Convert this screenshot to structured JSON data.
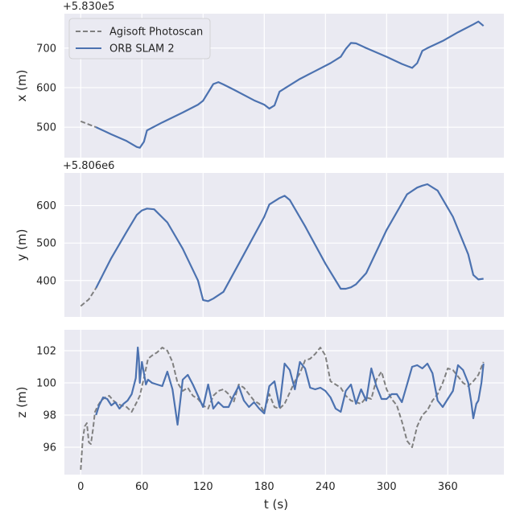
{
  "colors": {
    "axes_bg": "#eaeaf2",
    "grid": "#ffffff",
    "text": "#262626",
    "agisoft": "#808080",
    "orb": "#4c72b0"
  },
  "legend": {
    "placement": "upper-left of top panel",
    "entries": [
      {
        "label": "Agisoft Photoscan",
        "style": "dashed",
        "color": "#808080"
      },
      {
        "label": "ORB SLAM 2",
        "style": "solid",
        "color": "#4c72b0"
      }
    ]
  },
  "chart_data": [
    {
      "type": "line",
      "title": "",
      "xlabel": "",
      "ylabel": "x (m)",
      "offset_text": "+5.830e5",
      "xlim": [
        -16,
        415
      ],
      "ylim": [
        423,
        787
      ],
      "x_ticks": [
        0,
        60,
        120,
        180,
        240,
        300,
        360
      ],
      "y_ticks": [
        500,
        600,
        700
      ],
      "y_tick_labels": [
        "500",
        "600",
        "700"
      ],
      "grid": true,
      "series": [
        {
          "name": "Agisoft Photoscan",
          "style": "dashed",
          "x": [
            0,
            10,
            15
          ],
          "y": [
            515,
            505,
            500
          ]
        },
        {
          "name": "ORB SLAM 2",
          "style": "solid",
          "x": [
            15,
            30,
            45,
            55,
            58,
            62,
            65,
            80,
            100,
            115,
            120,
            125,
            130,
            135,
            140,
            150,
            170,
            180,
            185,
            190,
            195,
            200,
            215,
            230,
            245,
            255,
            260,
            265,
            270,
            280,
            300,
            315,
            325,
            330,
            335,
            340,
            355,
            370,
            385,
            390,
            395
          ],
          "y": [
            500,
            482,
            465,
            450,
            448,
            463,
            492,
            512,
            537,
            557,
            567,
            588,
            609,
            614,
            608,
            595,
            568,
            557,
            547,
            555,
            590,
            598,
            622,
            642,
            662,
            678,
            698,
            713,
            712,
            700,
            678,
            660,
            650,
            662,
            693,
            700,
            718,
            740,
            760,
            767,
            756
          ]
        }
      ]
    },
    {
      "type": "line",
      "title": "",
      "xlabel": "",
      "ylabel": "y (m)",
      "offset_text": "+5.806e6",
      "xlim": [
        -16,
        415
      ],
      "ylim": [
        303,
        687
      ],
      "x_ticks": [
        0,
        60,
        120,
        180,
        240,
        300,
        360
      ],
      "y_ticks": [
        400,
        500,
        600
      ],
      "y_tick_labels": [
        "400",
        "500",
        "600"
      ],
      "grid": true,
      "series": [
        {
          "name": "Agisoft Photoscan",
          "style": "dashed",
          "x": [
            0,
            8,
            15
          ],
          "y": [
            332,
            350,
            380
          ]
        },
        {
          "name": "ORB SLAM 2",
          "style": "solid",
          "x": [
            15,
            30,
            45,
            55,
            60,
            65,
            72,
            85,
            100,
            115,
            120,
            125,
            130,
            140,
            160,
            180,
            185,
            195,
            200,
            205,
            220,
            240,
            255,
            260,
            265,
            270,
            280,
            300,
            320,
            330,
            335,
            340,
            350,
            365,
            380,
            385,
            390,
            395
          ],
          "y": [
            380,
            460,
            530,
            575,
            587,
            592,
            590,
            555,
            485,
            400,
            348,
            345,
            352,
            370,
            470,
            570,
            603,
            620,
            626,
            615,
            545,
            445,
            378,
            378,
            382,
            390,
            420,
            535,
            630,
            648,
            653,
            657,
            640,
            570,
            470,
            415,
            403,
            405
          ]
        }
      ]
    },
    {
      "type": "line",
      "title": "",
      "xlabel": "t (s)",
      "ylabel": "z (m)",
      "offset_text": "",
      "xlim": [
        -16,
        415
      ],
      "ylim": [
        94.3,
        103.3
      ],
      "x_ticks": [
        0,
        60,
        120,
        180,
        240,
        300,
        360
      ],
      "x_tick_labels": [
        "0",
        "60",
        "120",
        "180",
        "240",
        "300",
        "360"
      ],
      "y_ticks": [
        96,
        98,
        100,
        102
      ],
      "y_tick_labels": [
        "96",
        "98",
        "100",
        "102"
      ],
      "grid": true,
      "series": [
        {
          "name": "Agisoft Photoscan",
          "style": "dashed",
          "x": [
            0,
            2,
            4,
            6,
            8,
            10,
            12,
            14,
            17,
            20,
            24,
            28,
            32,
            36,
            40,
            45,
            50,
            55,
            58,
            62,
            66,
            70,
            75,
            80,
            85,
            90,
            95,
            100,
            105,
            110,
            115,
            120,
            125,
            130,
            135,
            140,
            145,
            150,
            155,
            160,
            165,
            170,
            175,
            180,
            185,
            190,
            195,
            200,
            205,
            210,
            215,
            220,
            225,
            230,
            235,
            240,
            245,
            250,
            255,
            260,
            265,
            270,
            275,
            280,
            285,
            290,
            295,
            300,
            305,
            310,
            315,
            320,
            325,
            330,
            335,
            340,
            345,
            350,
            355,
            360,
            365,
            370,
            375,
            380,
            385,
            390,
            395
          ],
          "y": [
            94.6,
            96.5,
            97.3,
            97.5,
            96.3,
            96.2,
            97.1,
            98.2,
            98.6,
            98.9,
            99.1,
            99.2,
            98.9,
            98.7,
            98.6,
            98.5,
            98.2,
            98.8,
            99.2,
            100.3,
            101.5,
            101.7,
            101.9,
            102.2,
            102.0,
            101.3,
            100.0,
            99.5,
            99.7,
            99.2,
            99.0,
            98.6,
            98.4,
            99.2,
            99.5,
            99.6,
            99.3,
            98.8,
            99.9,
            99.7,
            99.3,
            98.9,
            98.7,
            98.2,
            99.3,
            98.5,
            98.4,
            98.7,
            99.4,
            100.1,
            100.6,
            101.4,
            101.5,
            101.8,
            102.2,
            101.7,
            100.1,
            99.9,
            99.7,
            99.2,
            98.9,
            98.8,
            98.7,
            99.1,
            99.0,
            100.2,
            100.7,
            99.6,
            99.0,
            98.6,
            97.6,
            96.4,
            96.0,
            97.3,
            98.0,
            98.3,
            98.9,
            99.3,
            100.0,
            100.9,
            100.8,
            100.4,
            100.0,
            99.8,
            100.1,
            100.5,
            101.3
          ]
        },
        {
          "name": "ORB SLAM 2",
          "style": "solid",
          "x": [
            15,
            18,
            22,
            26,
            30,
            34,
            38,
            42,
            46,
            50,
            54,
            56,
            57,
            58,
            60,
            62,
            64,
            66,
            70,
            75,
            80,
            85,
            90,
            95,
            100,
            105,
            110,
            115,
            120,
            125,
            130,
            135,
            140,
            145,
            150,
            155,
            160,
            165,
            170,
            175,
            180,
            185,
            190,
            195,
            200,
            205,
            210,
            215,
            220,
            225,
            230,
            235,
            240,
            245,
            250,
            255,
            260,
            265,
            270,
            275,
            280,
            285,
            290,
            295,
            300,
            305,
            310,
            315,
            320,
            325,
            330,
            335,
            340,
            345,
            350,
            355,
            360,
            365,
            370,
            375,
            380,
            383,
            385,
            388,
            390,
            393,
            395
          ],
          "y": [
            98.0,
            98.6,
            99.1,
            99.0,
            98.6,
            98.8,
            98.4,
            98.7,
            98.9,
            99.3,
            100.3,
            102.2,
            101.5,
            100.0,
            101.3,
            100.6,
            99.9,
            100.2,
            100.0,
            99.9,
            99.8,
            100.7,
            99.6,
            97.4,
            100.2,
            100.5,
            99.9,
            99.2,
            98.5,
            99.9,
            98.4,
            98.8,
            98.5,
            98.5,
            99.2,
            99.8,
            98.9,
            98.5,
            98.8,
            98.4,
            98.1,
            99.8,
            100.1,
            98.5,
            101.2,
            100.8,
            99.6,
            101.3,
            100.9,
            99.7,
            99.6,
            99.7,
            99.5,
            99.1,
            98.4,
            98.2,
            99.5,
            99.9,
            98.7,
            99.6,
            98.9,
            100.9,
            99.8,
            99.0,
            99.0,
            99.3,
            99.3,
            98.8,
            99.9,
            101.0,
            101.1,
            100.9,
            101.2,
            100.6,
            98.9,
            98.5,
            99.0,
            99.5,
            101.1,
            100.8,
            100.0,
            98.8,
            97.8,
            98.7,
            98.9,
            100.0,
            101.2
          ]
        }
      ]
    }
  ]
}
